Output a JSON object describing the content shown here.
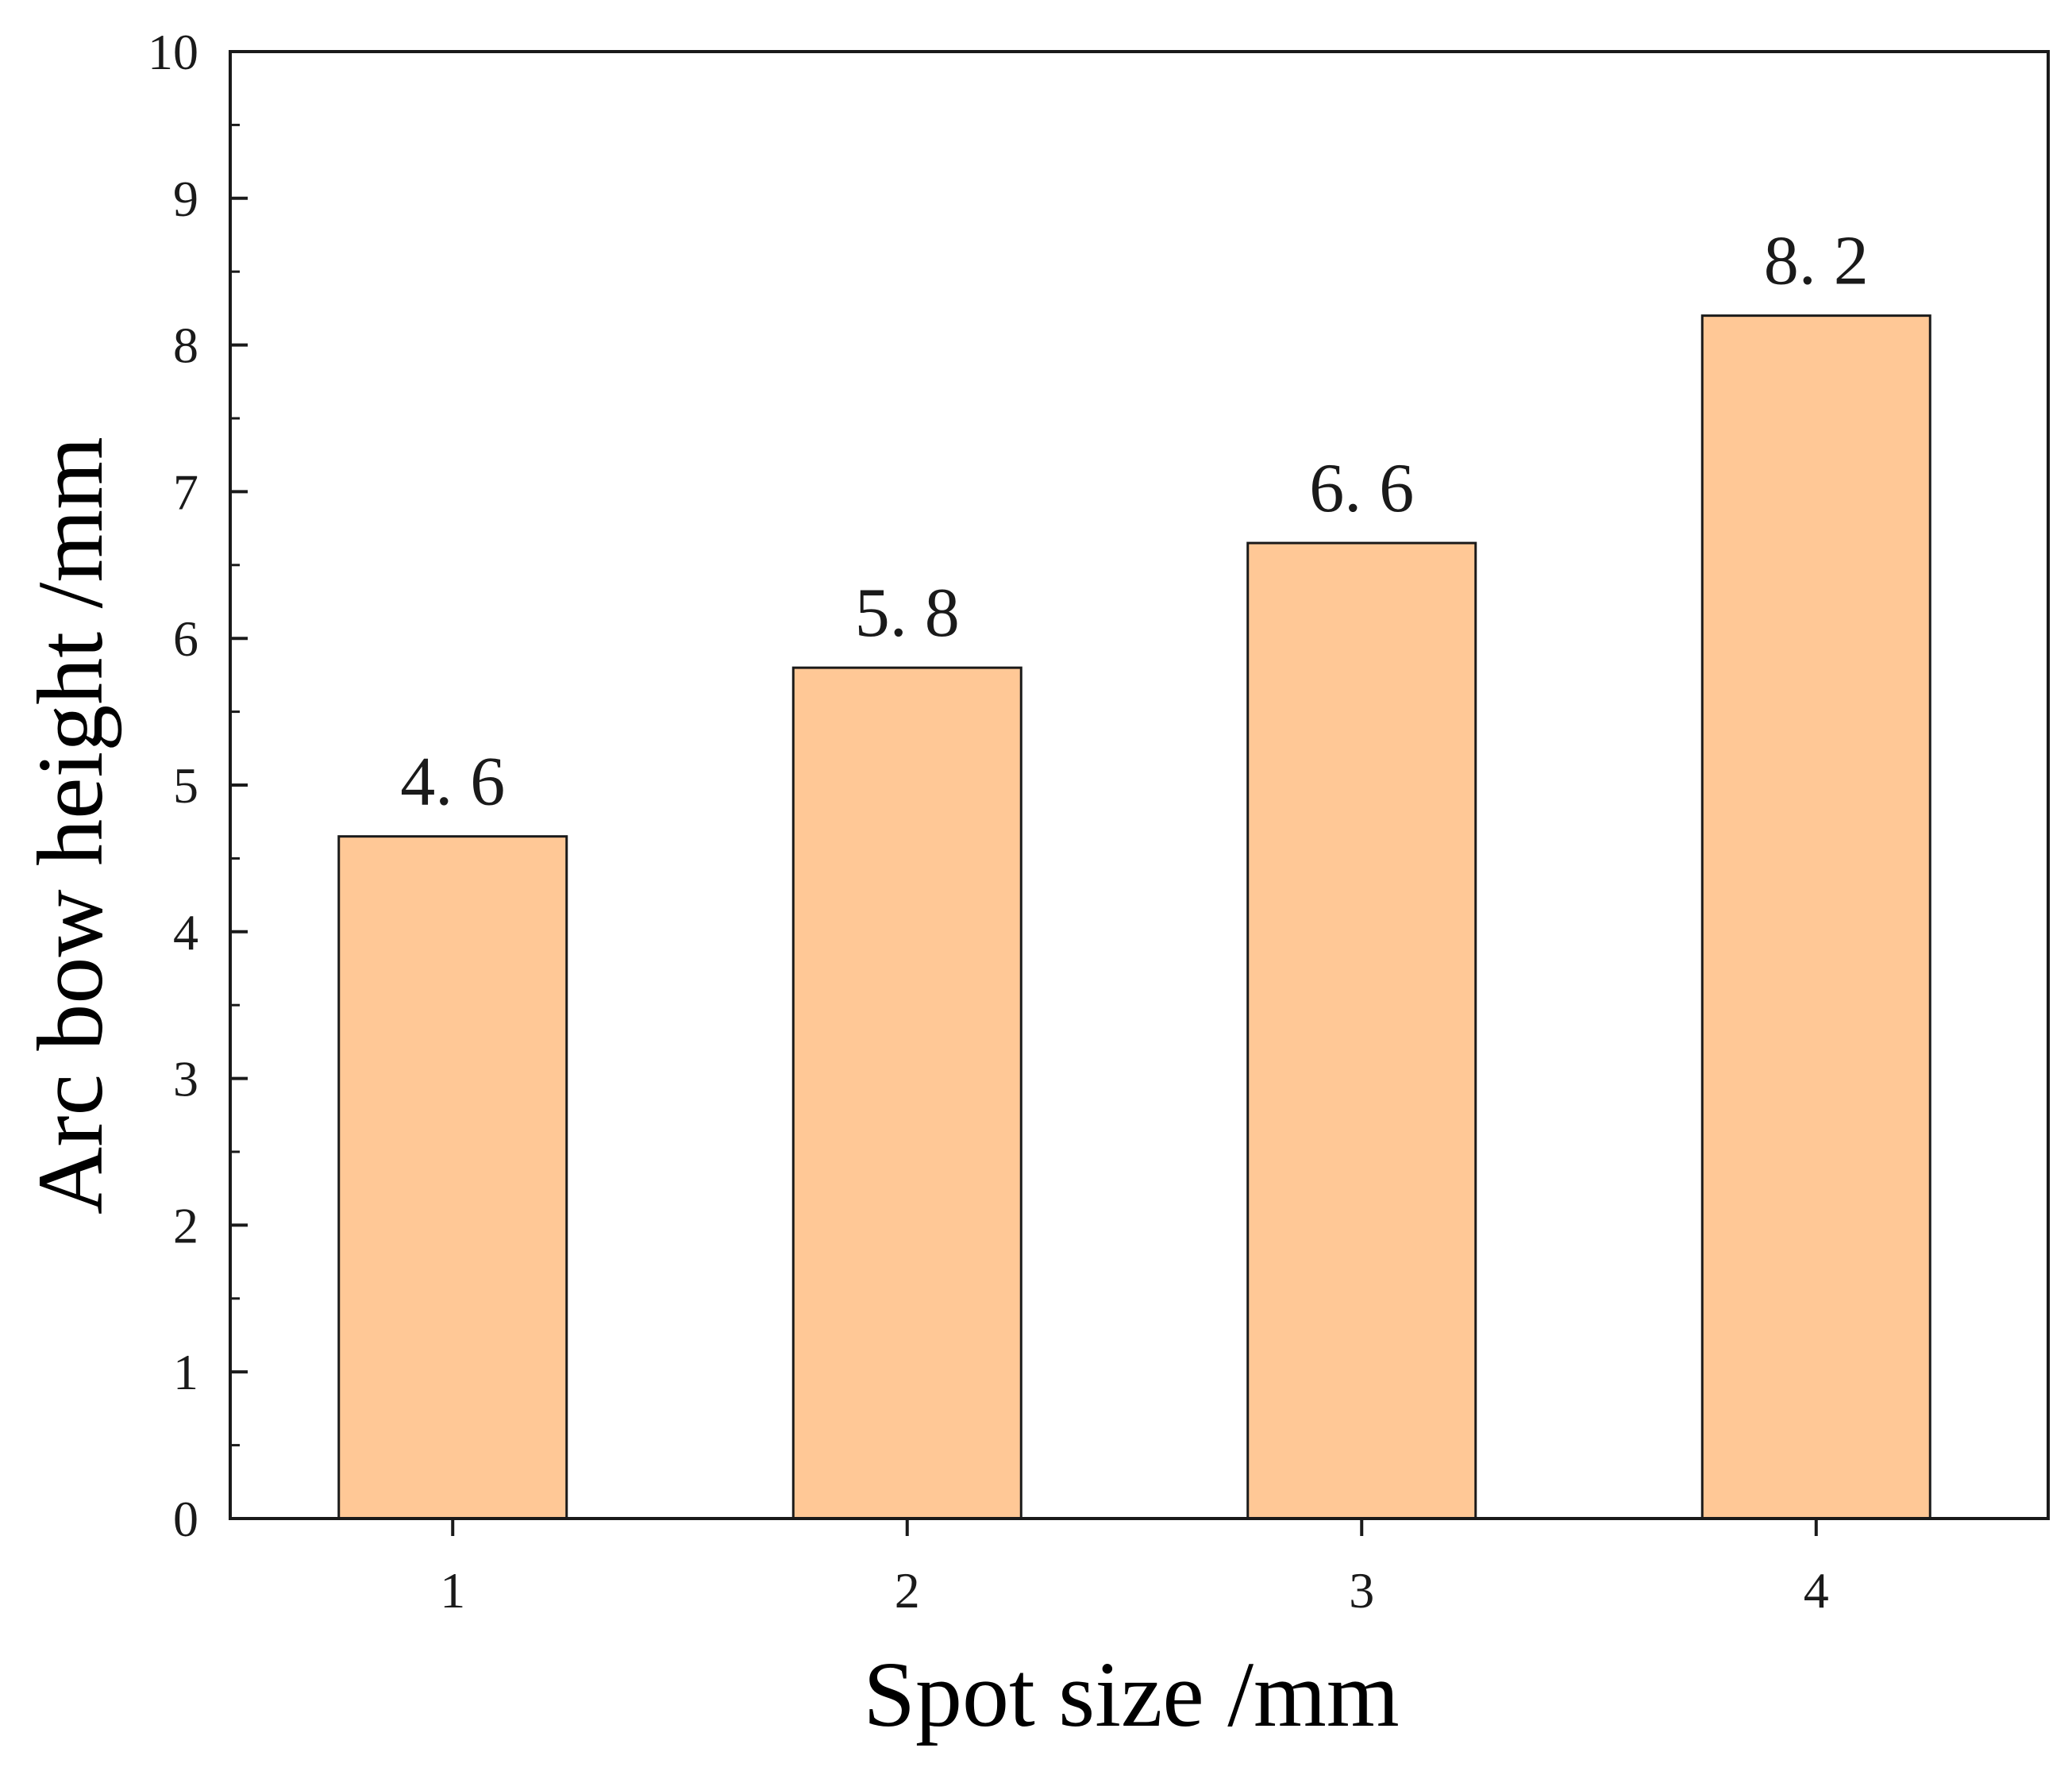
{
  "chart_data": {
    "type": "bar",
    "title": "",
    "xlabel": "Spot size  /mm",
    "ylabel": "Arc bow height /mm",
    "categories": [
      "1",
      "2",
      "3",
      "4"
    ],
    "values": [
      4.65,
      5.8,
      6.65,
      8.2
    ],
    "data_labels": [
      "4. 6",
      "5. 8",
      "6. 6",
      "8. 2"
    ],
    "ylim": [
      0,
      10
    ],
    "yticks": [
      "0",
      "1",
      "2",
      "3",
      "4",
      "5",
      "6",
      "7",
      "8",
      "9",
      "10"
    ],
    "grid": false,
    "legend": "none",
    "bar_color": "#FFC896",
    "bar_edge_color": "#1a1a1a"
  }
}
